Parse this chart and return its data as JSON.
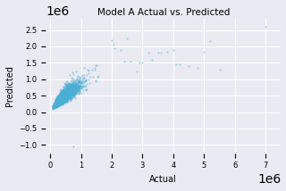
{
  "title": "Model A Actual vs. Predicted",
  "xlabel": "Actual",
  "ylabel": "Predicted",
  "xlim": [
    -150000.0,
    7500000.0
  ],
  "ylim": [
    -1250000.0,
    2850000.0
  ],
  "point_color": "#4bafd4",
  "point_alpha": 0.45,
  "point_size": 2.5,
  "background_color": "#eaeaf2",
  "grid_color": "white",
  "seed": 42,
  "n_main": 5000
}
